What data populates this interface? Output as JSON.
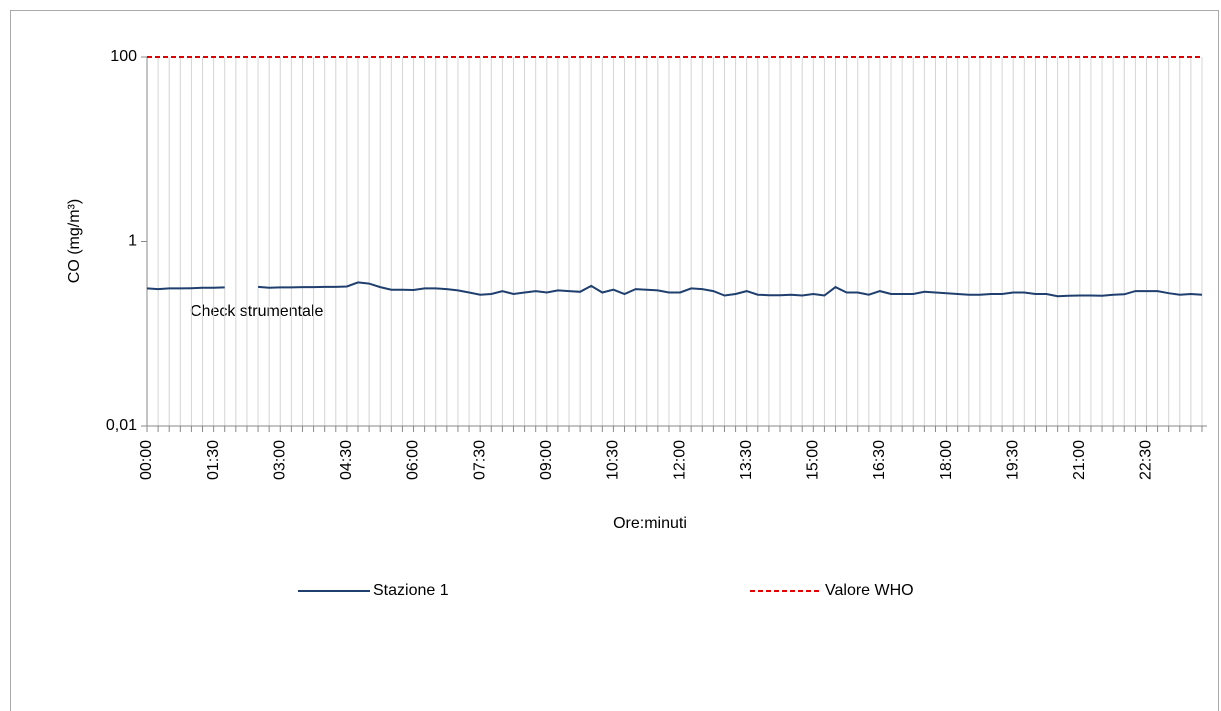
{
  "chart_data": {
    "type": "line",
    "ylabel": "CO (mg/m³)",
    "xlabel": "Ore:minuti",
    "annotation": "Check  strumentale",
    "log_scale_y": true,
    "grid_x": true,
    "legend": "bottom",
    "ylim": [
      0.01,
      100
    ],
    "yticks": [
      {
        "value": 0.01,
        "label": "0,01"
      },
      1,
      100
    ],
    "categories": [
      "00:00",
      null,
      null,
      null,
      null,
      null,
      "01:30",
      null,
      null,
      null,
      null,
      null,
      "03:00",
      null,
      null,
      null,
      null,
      null,
      "04:30",
      null,
      null,
      null,
      null,
      null,
      "06:00",
      null,
      null,
      null,
      null,
      null,
      "07:30",
      null,
      null,
      null,
      null,
      null,
      "09:00",
      null,
      null,
      null,
      null,
      null,
      "10:30",
      null,
      null,
      null,
      null,
      null,
      "12:00",
      null,
      null,
      null,
      null,
      null,
      "13:30",
      null,
      null,
      null,
      null,
      null,
      "15:00",
      null,
      null,
      null,
      null,
      null,
      "16:30",
      null,
      null,
      null,
      null,
      null,
      "18:00",
      null,
      null,
      null,
      null,
      null,
      "19:30",
      null,
      null,
      null,
      null,
      null,
      "21:00",
      null,
      null,
      null,
      null,
      null,
      "22:30",
      null,
      null,
      null,
      null,
      null
    ],
    "series": [
      {
        "name": "Stazione 1",
        "color": "#1f3f6e",
        "dashed": false,
        "values": [
          0.31,
          0.305,
          0.31,
          0.31,
          0.312,
          0.315,
          0.315,
          0.318,
          null,
          null,
          0.322,
          0.315,
          0.318,
          0.318,
          0.32,
          0.32,
          0.322,
          0.322,
          0.325,
          0.36,
          0.35,
          0.32,
          0.3,
          0.3,
          0.298,
          0.31,
          0.31,
          0.305,
          0.295,
          0.28,
          0.265,
          0.27,
          0.29,
          0.27,
          0.28,
          0.29,
          0.28,
          0.295,
          0.29,
          0.285,
          0.33,
          0.28,
          0.3,
          0.27,
          0.305,
          0.3,
          0.295,
          0.28,
          0.28,
          0.31,
          0.305,
          0.29,
          0.26,
          0.27,
          0.29,
          0.265,
          0.262,
          0.262,
          0.265,
          0.26,
          0.27,
          0.26,
          0.32,
          0.28,
          0.28,
          0.265,
          0.29,
          0.27,
          0.27,
          0.27,
          0.285,
          0.28,
          0.275,
          0.27,
          0.265,
          0.265,
          0.27,
          0.27,
          0.28,
          0.28,
          0.27,
          0.27,
          0.255,
          0.258,
          0.26,
          0.26,
          0.258,
          0.265,
          0.268,
          0.29,
          0.29,
          0.29,
          0.275,
          0.265,
          0.27,
          0.265
        ]
      },
      {
        "name": "Valore WHO",
        "color": "#e00000",
        "dashed": true,
        "values": [
          100,
          100,
          100,
          100,
          100,
          100,
          100,
          100,
          100,
          100,
          100,
          100,
          100,
          100,
          100,
          100,
          100,
          100,
          100,
          100,
          100,
          100,
          100,
          100,
          100,
          100,
          100,
          100,
          100,
          100,
          100,
          100,
          100,
          100,
          100,
          100,
          100,
          100,
          100,
          100,
          100,
          100,
          100,
          100,
          100,
          100,
          100,
          100,
          100,
          100,
          100,
          100,
          100,
          100,
          100,
          100,
          100,
          100,
          100,
          100,
          100,
          100,
          100,
          100,
          100,
          100,
          100,
          100,
          100,
          100,
          100,
          100,
          100,
          100,
          100,
          100,
          100,
          100,
          100,
          100,
          100,
          100,
          100,
          100,
          100,
          100,
          100,
          100,
          100,
          100,
          100,
          100,
          100,
          100,
          100,
          100
        ]
      }
    ]
  }
}
